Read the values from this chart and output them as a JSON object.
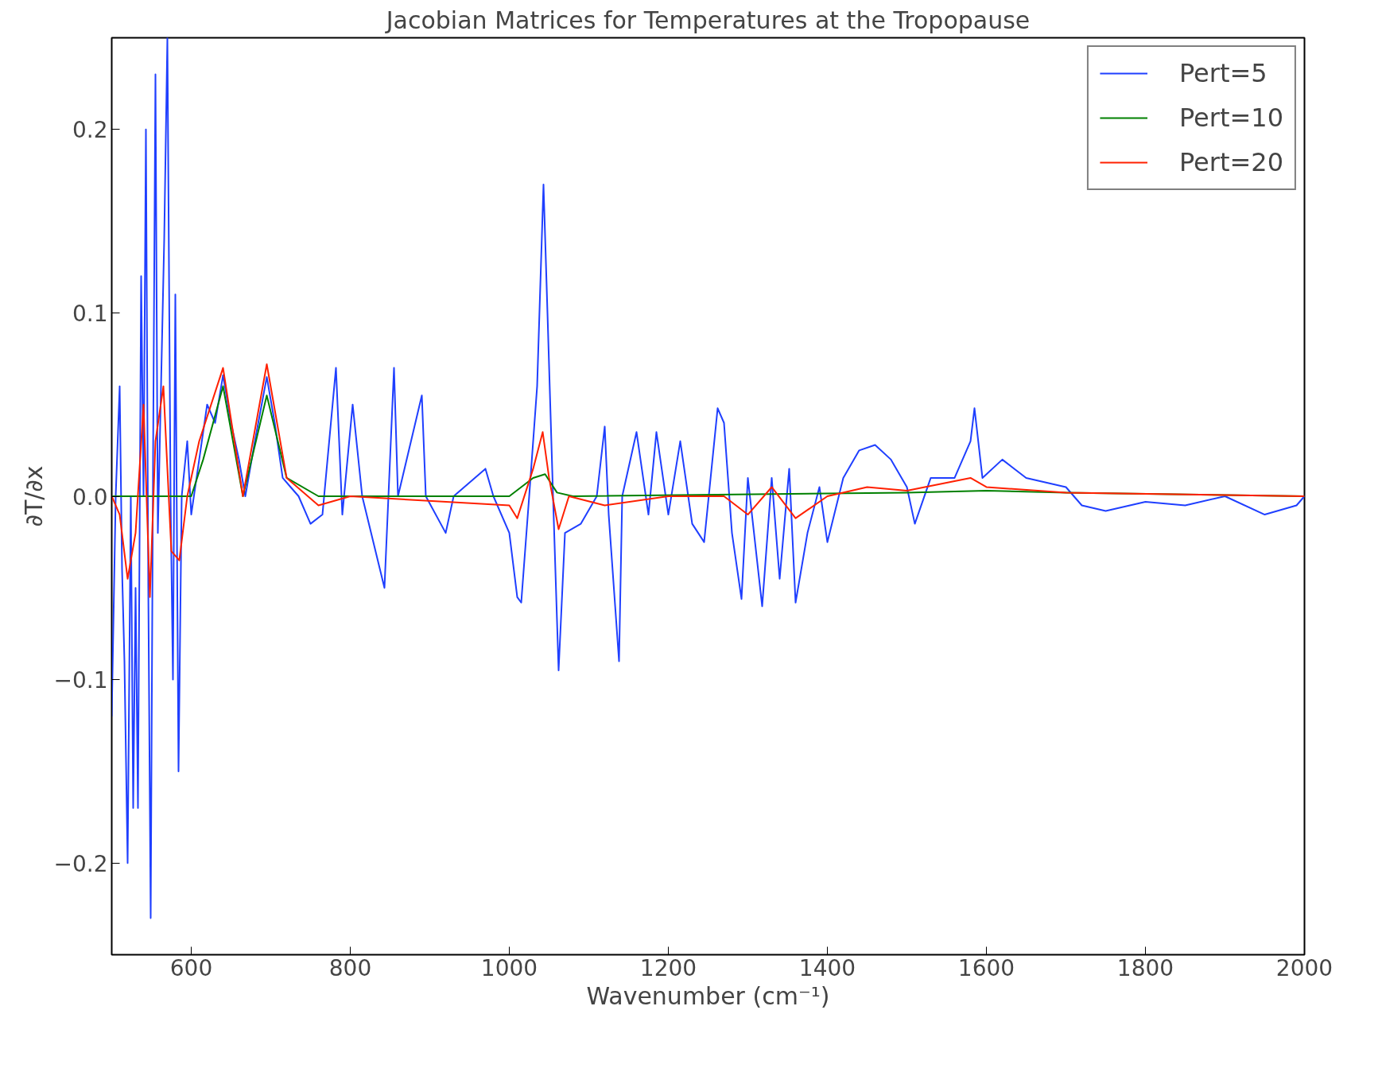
{
  "chart_data": {
    "type": "line",
    "title": "Jacobian Matrices for Temperatures at the Tropopause",
    "xlabel": "Wavenumber (cm⁻¹)",
    "ylabel": "∂T/∂x",
    "xlim": [
      500,
      2000
    ],
    "xticks": [
      600,
      800,
      1000,
      1200,
      1400,
      1600,
      1800,
      2000
    ],
    "ylim": [
      -0.25,
      0.25
    ],
    "yticks": [
      {
        "value": -0.2,
        "label": "−0.2"
      },
      {
        "value": -0.1,
        "label": "−0.1"
      },
      {
        "value": 0.0,
        "label": "0.0"
      },
      {
        "value": 0.1,
        "label": "0.1"
      },
      {
        "value": 0.2,
        "label": "0.2"
      }
    ],
    "grid": false,
    "legend": "top right",
    "series": [
      {
        "name": "Pert=5",
        "color": "#1f3fff",
        "x": [
          500,
          505,
          510,
          513,
          516,
          520,
          524,
          527,
          530,
          533,
          537,
          540,
          543,
          546,
          549,
          552,
          555,
          558,
          562,
          566,
          570,
          574,
          577,
          580,
          584,
          588,
          595,
          600,
          610,
          620,
          630,
          640,
          650,
          660,
          668,
          680,
          695,
          705,
          715,
          725,
          735,
          750,
          765,
          782,
          790,
          803,
          815,
          843,
          848,
          855,
          860,
          890,
          895,
          920,
          930,
          970,
          980,
          1000,
          1010,
          1015,
          1025,
          1035,
          1043,
          1048,
          1055,
          1062,
          1070,
          1090,
          1110,
          1120,
          1125,
          1138,
          1142,
          1160,
          1175,
          1185,
          1200,
          1215,
          1230,
          1245,
          1262,
          1270,
          1280,
          1292,
          1300,
          1318,
          1330,
          1340,
          1352,
          1360,
          1375,
          1390,
          1400,
          1420,
          1440,
          1460,
          1480,
          1500,
          1510,
          1530,
          1560,
          1580,
          1585,
          1595,
          1620,
          1650,
          1700,
          1720,
          1750,
          1800,
          1850,
          1900,
          1950,
          1990,
          2000
        ],
        "values": [
          -0.12,
          0.0,
          0.06,
          -0.04,
          -0.09,
          -0.2,
          0.0,
          -0.17,
          -0.05,
          -0.17,
          0.12,
          0.0,
          0.2,
          -0.05,
          -0.23,
          0.02,
          0.23,
          -0.02,
          0.06,
          0.14,
          0.25,
          0.0,
          -0.1,
          0.11,
          -0.15,
          0.0,
          0.03,
          -0.01,
          0.02,
          0.05,
          0.04,
          0.066,
          0.04,
          0.02,
          0.0,
          0.03,
          0.065,
          0.04,
          0.01,
          0.005,
          0.0,
          -0.015,
          -0.01,
          0.07,
          -0.01,
          0.05,
          0.0,
          -0.05,
          0.0,
          0.07,
          0.0,
          0.055,
          0.0,
          -0.02,
          0.0,
          0.015,
          0.0,
          -0.02,
          -0.055,
          -0.058,
          0.0,
          0.06,
          0.17,
          0.1,
          0.0,
          -0.095,
          -0.02,
          -0.015,
          0.0,
          0.038,
          -0.01,
          -0.09,
          0.0,
          0.035,
          -0.01,
          0.035,
          -0.01,
          0.03,
          -0.015,
          -0.025,
          0.048,
          0.04,
          -0.02,
          -0.056,
          0.01,
          -0.06,
          0.01,
          -0.045,
          0.015,
          -0.058,
          -0.02,
          0.005,
          -0.025,
          0.01,
          0.025,
          0.028,
          0.02,
          0.005,
          -0.015,
          0.01,
          0.01,
          0.03,
          0.048,
          0.01,
          0.02,
          0.01,
          0.005,
          -0.005,
          -0.008,
          -0.003,
          -0.005,
          0.0,
          -0.01,
          -0.005,
          0.0
        ]
      },
      {
        "name": "Pert=10",
        "color": "#008000",
        "x": [
          500,
          600,
          615,
          640,
          665,
          695,
          720,
          760,
          1000,
          1030,
          1045,
          1060,
          1080,
          1500,
          1600,
          1700,
          2000
        ],
        "values": [
          0.0,
          0.0,
          0.02,
          0.06,
          0.0,
          0.055,
          0.01,
          0.0,
          0.0,
          0.01,
          0.012,
          0.002,
          0.0,
          0.002,
          0.003,
          0.002,
          0.0
        ]
      },
      {
        "name": "Pert=20",
        "color": "#ff2000",
        "x": [
          500,
          510,
          520,
          530,
          540,
          548,
          555,
          565,
          575,
          585,
          595,
          610,
          640,
          665,
          695,
          720,
          760,
          800,
          1000,
          1010,
          1030,
          1042,
          1050,
          1062,
          1075,
          1120,
          1200,
          1270,
          1300,
          1330,
          1360,
          1400,
          1450,
          1500,
          1580,
          1600,
          1700,
          2000
        ],
        "values": [
          0.0,
          -0.01,
          -0.045,
          -0.02,
          0.05,
          -0.055,
          0.03,
          0.06,
          -0.03,
          -0.035,
          0.0,
          0.03,
          0.07,
          0.0,
          0.072,
          0.01,
          -0.005,
          0.0,
          -0.005,
          -0.012,
          0.015,
          0.035,
          0.01,
          -0.018,
          0.0,
          -0.005,
          0.0,
          0.0,
          -0.01,
          0.005,
          -0.012,
          0.0,
          0.005,
          0.003,
          0.01,
          0.005,
          0.002,
          0.0
        ]
      }
    ]
  }
}
